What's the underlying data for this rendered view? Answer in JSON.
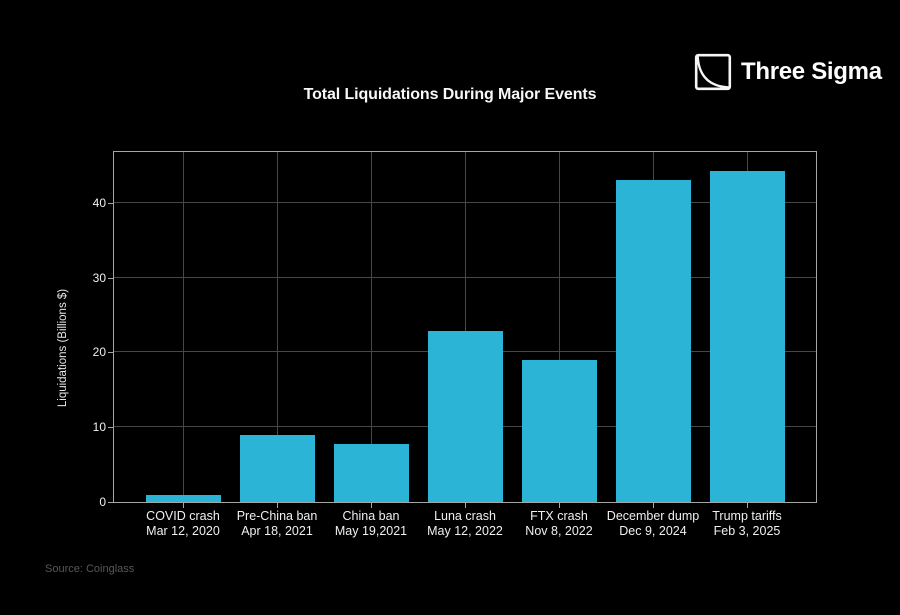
{
  "page": {
    "background": "#000000"
  },
  "logo": {
    "brand": "Three Sigma",
    "icon": "three-sigma-curve-square-icon",
    "color": "#ffffff"
  },
  "title": "Total Liquidations During Major Events",
  "source": "Source: Coinglass",
  "chart_data": {
    "type": "bar",
    "title": "Total Liquidations During Major Events",
    "xlabel": "",
    "ylabel": "Liquidations (Billions $)",
    "categories": [
      {
        "event": "COVID crash",
        "date": "Mar 12, 2020"
      },
      {
        "event": "Pre-China ban",
        "date": "Apr 18, 2021"
      },
      {
        "event": "China ban",
        "date": "May 19,2021"
      },
      {
        "event": "Luna crash",
        "date": "May 12, 2022"
      },
      {
        "event": "FTX crash",
        "date": "Nov 8, 2022"
      },
      {
        "event": "December dump",
        "date": "Dec 9, 2024"
      },
      {
        "event": "Trump tariffs",
        "date": "Feb 3, 2025"
      }
    ],
    "values": [
      1.0,
      9.0,
      7.8,
      22.9,
      19.0,
      43.1,
      44.3
    ],
    "yticks": [
      0,
      10,
      20,
      30,
      40
    ],
    "ylim": [
      0,
      46.8
    ],
    "grid": true,
    "legend": false,
    "bar_color": "#2cb4d6",
    "grid_color": "#474747",
    "spine_color": "#a6a6a6",
    "text_color": "#f2f2f2",
    "background_color": "#000000"
  }
}
